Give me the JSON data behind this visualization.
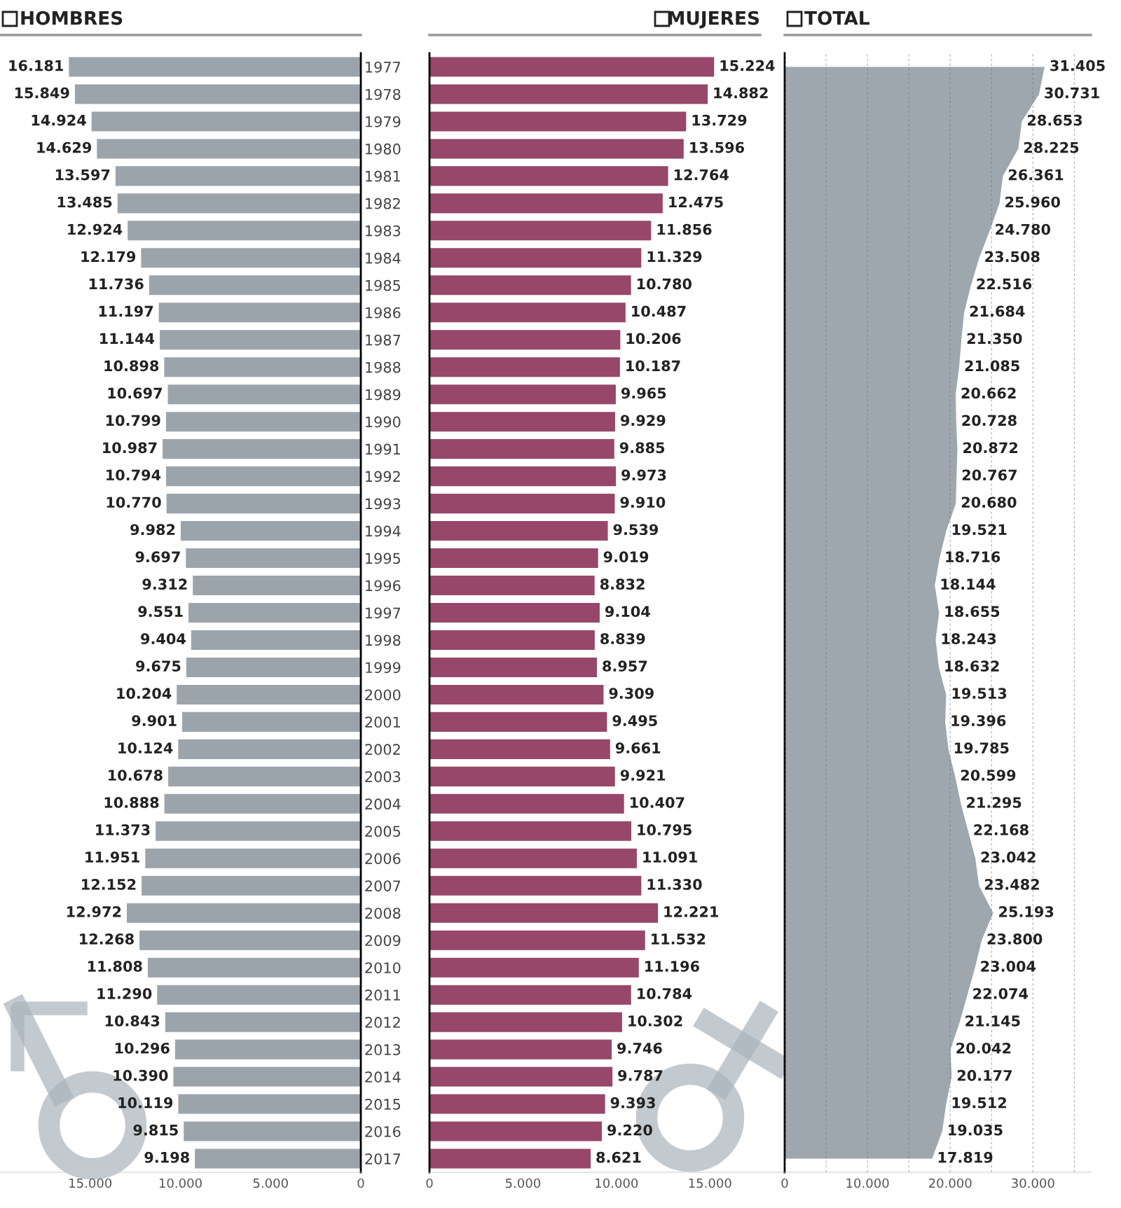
{
  "chart_data": [
    {
      "type": "bar",
      "orientation": "horizontal",
      "title": "HOMBRES",
      "tick_labels": "x",
      "color": "#9ca4ab",
      "categories": [
        "1977",
        "1978",
        "1979",
        "1980",
        "1981",
        "1982",
        "1983",
        "1984",
        "1985",
        "1986",
        "1987",
        "1988",
        "1989",
        "1990",
        "1991",
        "1992",
        "1993",
        "1994",
        "1995",
        "1996",
        "1997",
        "1998",
        "1999",
        "2000",
        "2001",
        "2002",
        "2003",
        "2004",
        "2005",
        "2006",
        "2007",
        "2008",
        "2009",
        "2010",
        "2011",
        "2012",
        "2013",
        "2014",
        "2015",
        "2016",
        "2017"
      ],
      "values": [
        16181,
        15849,
        14924,
        14629,
        13597,
        13485,
        12924,
        12179,
        11736,
        11197,
        11144,
        10898,
        10697,
        10799,
        10987,
        10794,
        10770,
        9982,
        9697,
        9312,
        9551,
        9404,
        9675,
        10204,
        9901,
        10124,
        10678,
        10888,
        11373,
        11951,
        12152,
        12972,
        12268,
        11808,
        11290,
        10843,
        10296,
        10390,
        10119,
        9815,
        9198
      ],
      "value_labels": [
        "16.181",
        "15.849",
        "14.924",
        "14.629",
        "13.597",
        "13.485",
        "12.924",
        "12.179",
        "11.736",
        "11.197",
        "11.144",
        "10.898",
        "10.697",
        "10.799",
        "10.987",
        "10.794",
        "10.770",
        "9.982",
        "9.697",
        "9.312",
        "9.551",
        "9.404",
        "9.675",
        "10.204",
        "9.901",
        "10.124",
        "10.678",
        "10.888",
        "11.373",
        "11.951",
        "12.152",
        "12.972",
        "12.268",
        "11.808",
        "11.290",
        "10.843",
        "10.296",
        "10.390",
        "10.119",
        "9.815",
        "9.198"
      ],
      "xlim": [
        20000,
        0
      ],
      "xticks": [
        {
          "value": 15000,
          "label": "15.000"
        },
        {
          "value": 10000,
          "label": "10.000"
        },
        {
          "value": 5000,
          "label": "5.000"
        },
        0
      ]
    },
    {
      "type": "bar",
      "orientation": "horizontal",
      "title": "MUJERES",
      "color": "#96476a",
      "categories": [
        "1977",
        "1978",
        "1979",
        "1980",
        "1981",
        "1982",
        "1983",
        "1984",
        "1985",
        "1986",
        "1987",
        "1988",
        "1989",
        "1990",
        "1991",
        "1992",
        "1993",
        "1994",
        "1995",
        "1996",
        "1997",
        "1998",
        "1999",
        "2000",
        "2001",
        "2002",
        "2003",
        "2004",
        "2005",
        "2006",
        "2007",
        "2008",
        "2009",
        "2010",
        "2011",
        "2012",
        "2013",
        "2014",
        "2015",
        "2016",
        "2017"
      ],
      "values": [
        15224,
        14882,
        13729,
        13596,
        12764,
        12475,
        11856,
        11329,
        10780,
        10487,
        10206,
        10187,
        9965,
        9929,
        9885,
        9973,
        9910,
        9539,
        9019,
        8832,
        9104,
        8839,
        8957,
        9309,
        9495,
        9661,
        9921,
        10407,
        10795,
        11091,
        11330,
        12221,
        11532,
        11196,
        10784,
        10302,
        9746,
        9787,
        9393,
        9220,
        8621
      ],
      "value_labels": [
        "15.224",
        "14.882",
        "13.729",
        "13.596",
        "12.764",
        "12.475",
        "11.856",
        "11.329",
        "10.780",
        "10.487",
        "10.206",
        "10.187",
        "9.965",
        "9.929",
        "9.885",
        "9.973",
        "9.910",
        "9.539",
        "9.019",
        "8.832",
        "9.104",
        "8.839",
        "8.957",
        "9.309",
        "9.495",
        "9.661",
        "9.921",
        "10.407",
        "10.795",
        "11.091",
        "11.330",
        "12.221",
        "11.532",
        "11.196",
        "10.784",
        "10.302",
        "9.746",
        "9.787",
        "9.393",
        "9.220",
        "8.621"
      ],
      "xlim": [
        0,
        19000
      ],
      "xticks": [
        0,
        {
          "value": 5000,
          "label": "5.000"
        },
        {
          "value": 10000,
          "label": "10.000"
        },
        {
          "value": 15000,
          "label": "15.000"
        }
      ]
    },
    {
      "type": "area",
      "orientation": "horizontal",
      "title": "TOTAL",
      "tick_labels": "x",
      "color": "#9ea7ae",
      "grid": "x",
      "categories": [
        "1977",
        "1978",
        "1979",
        "1980",
        "1981",
        "1982",
        "1983",
        "1984",
        "1985",
        "1986",
        "1987",
        "1988",
        "1989",
        "1990",
        "1991",
        "1992",
        "1993",
        "1994",
        "1995",
        "1996",
        "1997",
        "1998",
        "1999",
        "2000",
        "2001",
        "2002",
        "2003",
        "2004",
        "2005",
        "2006",
        "2007",
        "2008",
        "2009",
        "2010",
        "2011",
        "2012",
        "2013",
        "2014",
        "2015",
        "2016",
        "2017"
      ],
      "values": [
        31405,
        30731,
        28653,
        28225,
        26361,
        25960,
        24780,
        23508,
        22516,
        21684,
        21350,
        21085,
        20662,
        20728,
        20872,
        20767,
        20680,
        19521,
        18716,
        18144,
        18655,
        18243,
        18632,
        19513,
        19396,
        19785,
        20599,
        21295,
        22168,
        23042,
        23482,
        25193,
        23800,
        23004,
        22074,
        21145,
        20042,
        20177,
        19512,
        19035,
        17819
      ],
      "value_labels": [
        "31.405",
        "30.731",
        "28.653",
        "28.225",
        "26.361",
        "25.960",
        "24.780",
        "23.508",
        "22.516",
        "21.684",
        "21.350",
        "21.085",
        "20.662",
        "20.728",
        "20.872",
        "20.767",
        "20.680",
        "19.521",
        "18.716",
        "18.144",
        "18.655",
        "18.243",
        "18.632",
        "19.513",
        "19.396",
        "19.785",
        "20.599",
        "21.295",
        "22.168",
        "23.042",
        "23.482",
        "25.193",
        "23.800",
        "23.004",
        "22.074",
        "21.145",
        "20.042",
        "20.177",
        "19.512",
        "19.035",
        "17.819"
      ],
      "xlim": [
        0,
        37000
      ],
      "xticks": [
        0,
        {
          "value": 5000,
          "label": null
        },
        {
          "value": 10000,
          "label": "10.000"
        },
        {
          "value": 15000,
          "label": null
        },
        {
          "value": 20000,
          "label": "20.000"
        },
        {
          "value": 25000,
          "label": null
        },
        {
          "value": 30000,
          "label": "30.000"
        },
        {
          "value": 35000,
          "label": null
        }
      ]
    }
  ]
}
